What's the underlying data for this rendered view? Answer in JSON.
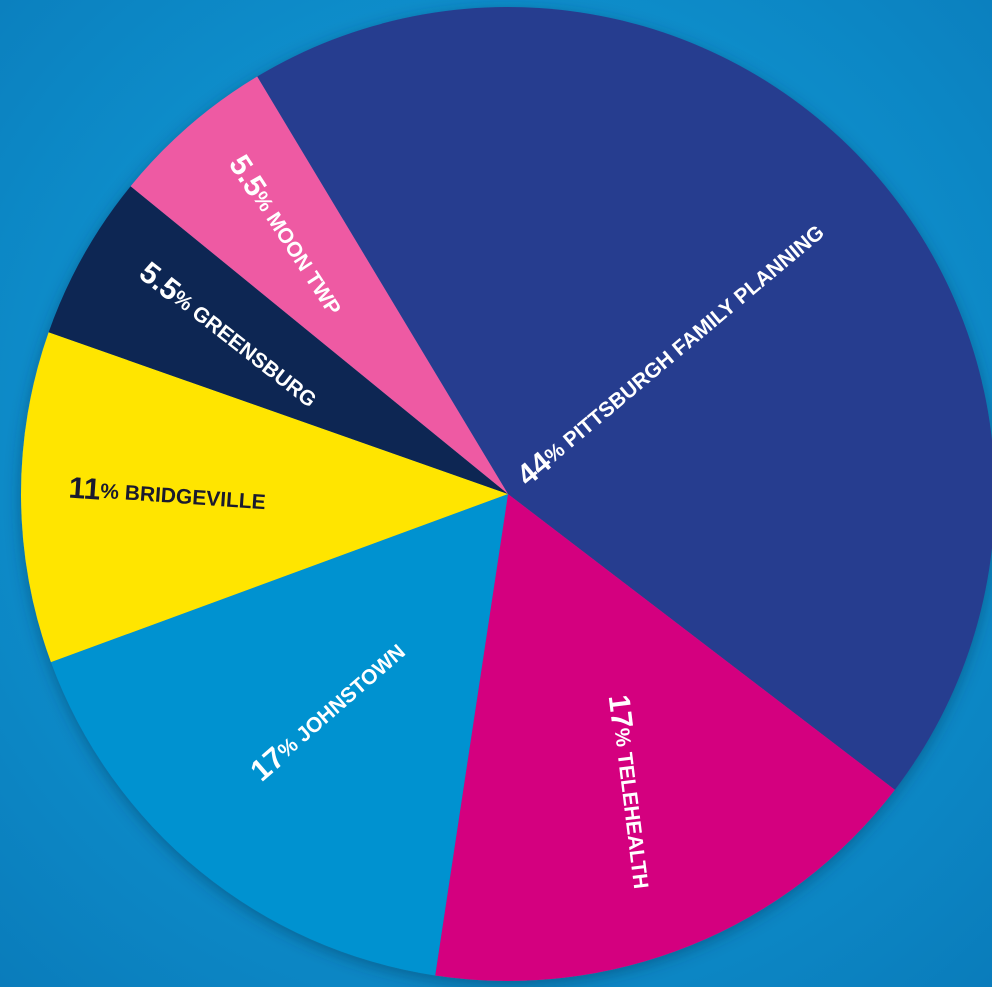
{
  "chart_data": {
    "type": "pie",
    "title": "",
    "slices": [
      {
        "percent_label": "44",
        "name": "PITTSBURGH FAMILY PLANNING",
        "value": 44,
        "color": "#283c8f",
        "text_color": "#ffffff"
      },
      {
        "percent_label": "17",
        "name": "TELEHEALTH",
        "value": 17,
        "color": "#d4007f",
        "text_color": "#ffffff"
      },
      {
        "percent_label": "17",
        "name": "JOHNSTOWN",
        "value": 17,
        "color": "#0092d0",
        "text_color": "#ffffff"
      },
      {
        "percent_label": "11",
        "name": "BRIDGEVILLE",
        "value": 11,
        "color": "#ffe500",
        "text_color": "#1a1a2e"
      },
      {
        "percent_label": "5.5",
        "name": "GREENSBURG",
        "value": 5.5,
        "color": "#0c2653",
        "text_color": "#ffffff"
      },
      {
        "percent_label": "5.5",
        "name": "MOON TWP",
        "value": 5.5,
        "color": "#ee5aa3",
        "text_color": "#ffffff"
      }
    ],
    "percent_symbol": "%"
  }
}
